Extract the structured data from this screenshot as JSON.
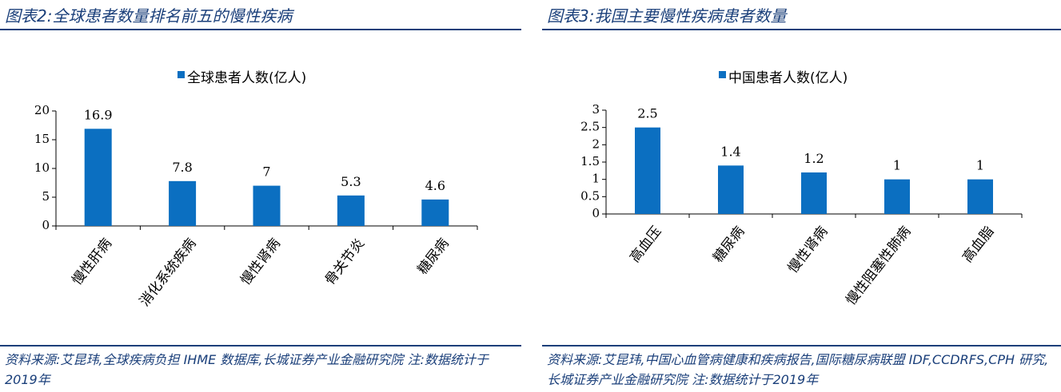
{
  "panels": [
    {
      "title": "图表2:全球患者数量排名前五的慢性疾病",
      "source": "资料来源:艾昆玮,全球疾病负担 IHME 数据库,长城证券产业金融研究院 注:数据统计于2019年"
    },
    {
      "title": "图表3:我国主要慢性疾病患者数量",
      "source": "资料来源:艾昆玮,中国心血管病健康和疾病报告,国际糖尿病联盟 IDF,CCDRFS,CPH 研究,长城证券产业金融研究院 注:数据统计于2019年"
    }
  ],
  "colors": {
    "bar": "#0b6fc1",
    "title": "#1a3f7a",
    "axis": "#000000"
  },
  "chart_data": [
    {
      "type": "bar",
      "categories": [
        "慢性肝病",
        "消化系统疾病",
        "慢性肾病",
        "骨关节炎",
        "糖尿病"
      ],
      "series": [
        {
          "name": "全球患者人数(亿人)",
          "values": [
            16.9,
            7.8,
            7,
            5.3,
            4.6
          ]
        }
      ],
      "value_labels": [
        "16.9",
        "7.8",
        "7",
        "5.3",
        "4.6"
      ],
      "ylim": [
        0,
        20
      ],
      "yticks": [
        0,
        5,
        10,
        15,
        20
      ],
      "ytick_labels": [
        "0",
        "5",
        "10",
        "15",
        "20"
      ],
      "grid": false,
      "legend_position": "top"
    },
    {
      "type": "bar",
      "categories": [
        "高血压",
        "糖尿病",
        "慢性肾病",
        "慢性阻塞性肺病",
        "高血脂"
      ],
      "series": [
        {
          "name": "中国患者人数(亿人)",
          "values": [
            2.5,
            1.4,
            1.2,
            1,
            1
          ]
        }
      ],
      "value_labels": [
        "2.5",
        "1.4",
        "1.2",
        "1",
        "1"
      ],
      "ylim": [
        0,
        3
      ],
      "yticks": [
        0,
        0.5,
        1,
        1.5,
        2,
        2.5,
        3
      ],
      "ytick_labels": [
        "0",
        "0.5",
        "1",
        "1.5",
        "2",
        "2.5",
        "3"
      ],
      "grid": false,
      "legend_position": "top"
    }
  ]
}
